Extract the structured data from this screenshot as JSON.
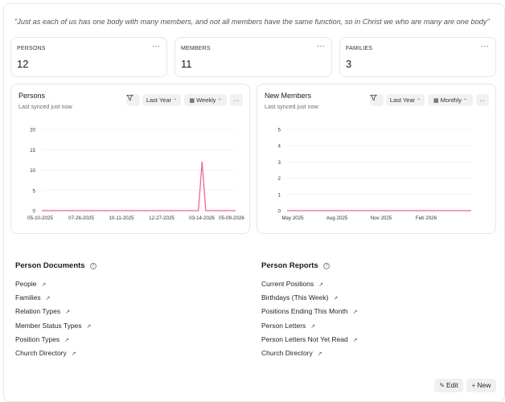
{
  "quote": "\"Just as each of us has one body with many members, and not all members have the same function, so in Christ we who are many are one body\"",
  "stats": [
    {
      "label": "PERSONS",
      "value": "12"
    },
    {
      "label": "MEMBERS",
      "value": "11"
    },
    {
      "label": "FAMILIES",
      "value": "3"
    }
  ],
  "icons": {
    "more": "more-horizontal-icon",
    "filter": "filter-icon",
    "calendar": "calendar-icon",
    "chevron": "chevron-up-down-icon",
    "arrow": "arrow-up-right-icon",
    "help": "help-circle-icon",
    "edit": "edit-icon",
    "plus": "plus-icon"
  },
  "persons_card": {
    "title": "Persons",
    "synced": "Last synced just now",
    "range": "Last Year",
    "interval": "Weekly"
  },
  "members_card": {
    "title": "New Members",
    "synced": "Last synced just now",
    "range": "Last Year",
    "interval": "Monthly"
  },
  "chart_data": [
    {
      "type": "line",
      "title": "Persons",
      "x_ticks": [
        "05-10-2025",
        "07-26-2025",
        "10-11-2025",
        "12-27-2025",
        "03-14-2026",
        "05-09-2026"
      ],
      "y_ticks": [
        0,
        5,
        10,
        15,
        20
      ],
      "ylim": [
        0,
        20
      ],
      "xlim": [
        "2025-05-10",
        "2026-05-09"
      ],
      "grid": true,
      "series": [
        {
          "color": "#f06595",
          "x": [
            "2025-05-10",
            "2026-02-28",
            "2026-03-07",
            "2026-03-14",
            "2026-05-09"
          ],
          "values": [
            0,
            0,
            12,
            0,
            0
          ]
        }
      ]
    },
    {
      "type": "line",
      "title": "New Members",
      "x_ticks": [
        "May 2025",
        "Aug 2025",
        "Nov 2025",
        "Feb 2026"
      ],
      "y_ticks": [
        0,
        1,
        2,
        3,
        4,
        5
      ],
      "ylim": [
        0,
        5
      ],
      "xlim": [
        "2025-05",
        "2026-05"
      ],
      "grid": true,
      "series": [
        {
          "color": "#f06595",
          "x": [
            "2025-05",
            "2026-05"
          ],
          "values": [
            0,
            0
          ]
        }
      ]
    }
  ],
  "documents": {
    "title": "Person Documents",
    "links": [
      "People",
      "Families",
      "Relation Types",
      "Member Status Types",
      "Position Types",
      "Church Directory"
    ]
  },
  "reports": {
    "title": "Person Reports",
    "links": [
      "Current Positions",
      "Birthdays (This Week)",
      "Positions Ending This Month",
      "Person Letters",
      "Person Letters Not Yet Read",
      "Church Directory"
    ]
  },
  "actions": {
    "edit": "Edit",
    "new": "New"
  },
  "colors": {
    "accent": "#f06595"
  }
}
